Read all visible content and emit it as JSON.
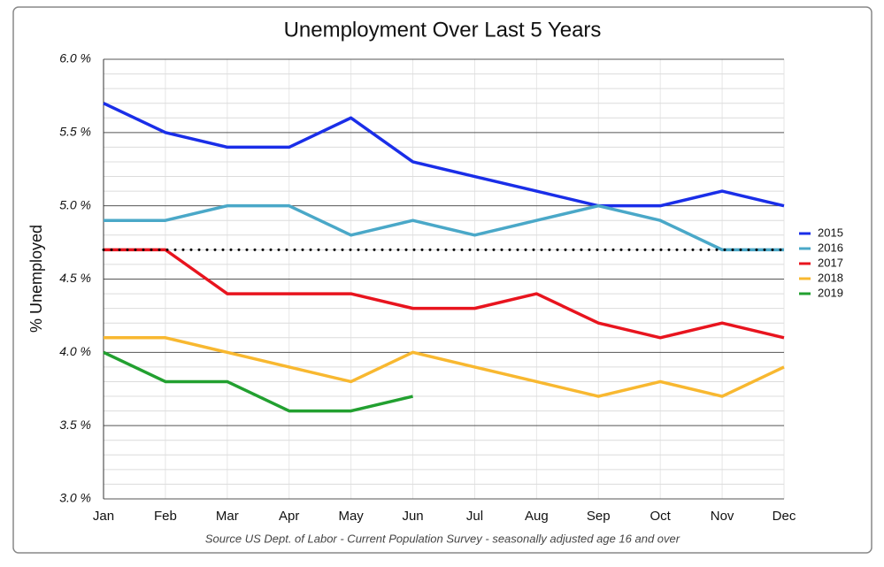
{
  "chart_data": {
    "type": "line",
    "title": "Unemployment Over Last 5 Years",
    "ylabel": "% Unemployed",
    "source": "Source US Dept. of Labor  - Current Population Survey  - seasonally adjusted  age 16 and over",
    "categories": [
      "Jan",
      "Feb",
      "Mar",
      "Apr",
      "May",
      "Jun",
      "Jul",
      "Aug",
      "Sep",
      "Oct",
      "Nov",
      "Dec"
    ],
    "series": [
      {
        "name": "2015",
        "color": "#1a2ee8",
        "values": [
          5.7,
          5.5,
          5.4,
          5.4,
          5.6,
          5.3,
          5.2,
          5.1,
          5.0,
          5.0,
          5.1,
          5.0
        ]
      },
      {
        "name": "2016",
        "color": "#4aa8c8",
        "values": [
          4.9,
          4.9,
          5.0,
          5.0,
          4.8,
          4.9,
          4.8,
          4.9,
          5.0,
          4.9,
          4.7,
          4.7
        ]
      },
      {
        "name": "2017",
        "color": "#e8141e",
        "values": [
          4.7,
          4.7,
          4.4,
          4.4,
          4.4,
          4.3,
          4.3,
          4.4,
          4.2,
          4.1,
          4.2,
          4.1
        ]
      },
      {
        "name": "2018",
        "color": "#f8b830",
        "values": [
          4.1,
          4.1,
          4.0,
          3.9,
          3.8,
          4.0,
          3.9,
          3.8,
          3.7,
          3.8,
          3.7,
          3.9
        ]
      },
      {
        "name": "2019",
        "color": "#22a030",
        "values": [
          4.0,
          3.8,
          3.8,
          3.6,
          3.6,
          3.7,
          null,
          null,
          null,
          null,
          null,
          null
        ]
      }
    ],
    "reference_line": 4.7,
    "ylim": [
      3.0,
      6.0
    ],
    "yticks": [
      {
        "value": 3.0,
        "label": "3.0 %"
      },
      {
        "value": 3.5,
        "label": "3.5 %"
      },
      {
        "value": 4.0,
        "label": "4.0 %"
      },
      {
        "value": 4.5,
        "label": "4.5 %"
      },
      {
        "value": 5.0,
        "label": "5.0 %"
      },
      {
        "value": 5.5,
        "label": "5.5 %"
      },
      {
        "value": 6.0,
        "label": "6.0 %"
      }
    ],
    "yminorticks": [
      3.1,
      3.2,
      3.3,
      3.4,
      3.6,
      3.7,
      3.8,
      3.9,
      4.1,
      4.2,
      4.3,
      4.4,
      4.6,
      4.7,
      4.8,
      4.9,
      5.1,
      5.2,
      5.3,
      5.4,
      5.6,
      5.7,
      5.8,
      5.9
    ],
    "grid": true,
    "legend": "right"
  }
}
